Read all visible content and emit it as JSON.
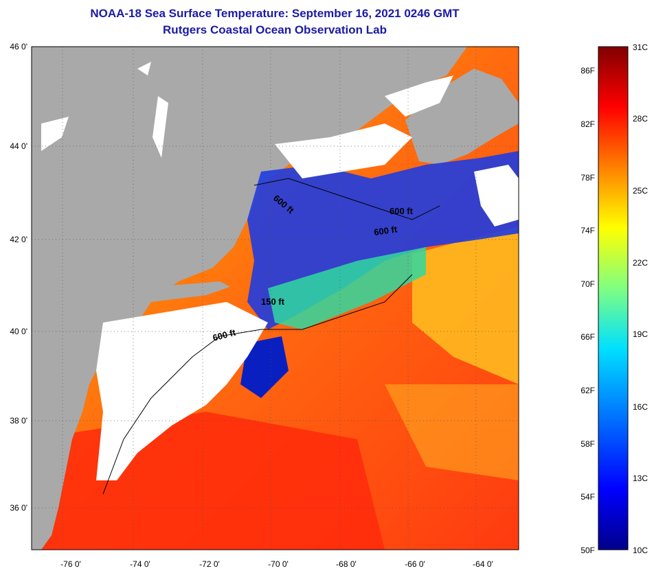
{
  "header": {
    "title": "NOAA-18 Sea Surface Temperature:  September 16, 2021 0246 GMT",
    "subtitle": "Rutgers Coastal Ocean Observation Lab"
  },
  "map": {
    "lat_ticks": [
      "46 0'",
      "44 0'",
      "42 0'",
      "40 0'",
      "38 0'",
      "36 0'"
    ],
    "lon_ticks": [
      "-76 0'",
      "-74 0'",
      "-72 0'",
      "-70 0'",
      "-68 0'",
      "-66 0'",
      "-64 0'"
    ],
    "isobath_labels": [
      "600 ft",
      "600 ft",
      "600 ft",
      "150 ft",
      "600 ft"
    ],
    "colors": {
      "land": "#a9a9a9",
      "cloud": "#ffffff",
      "warm": "#ff3a10",
      "cool": "#1a2bd0"
    }
  },
  "colorbar": {
    "fahrenheit_labels": [
      "86F",
      "82F",
      "78F",
      "74F",
      "70F",
      "66F",
      "62F",
      "58F",
      "54F",
      "50F"
    ],
    "celsius_labels": [
      "31C",
      "28C",
      "25C",
      "22C",
      "19C",
      "16C",
      "13C",
      "10C"
    ]
  }
}
